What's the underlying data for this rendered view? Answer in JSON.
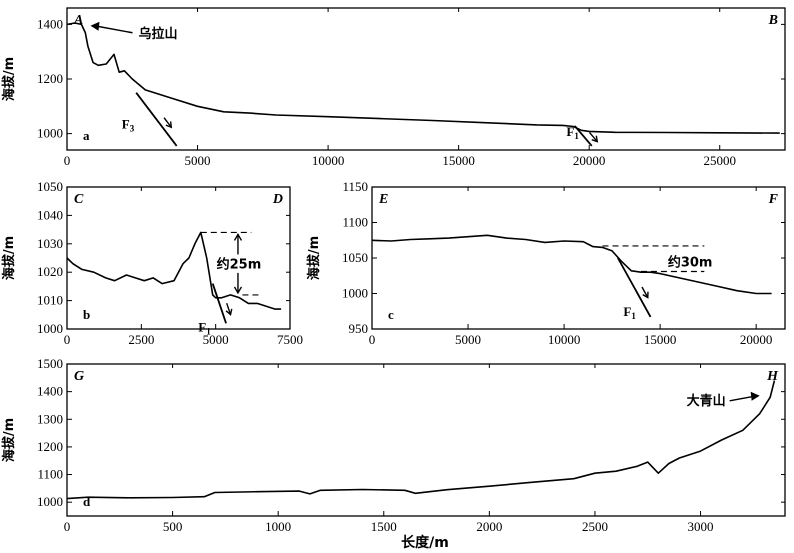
{
  "figure": {
    "xlabel": "长度/m"
  },
  "chart_data": [
    {
      "id": "a",
      "type": "line",
      "panel_label": "a",
      "corner_left": "A",
      "corner_right": "B",
      "ylabel": "海拔/m",
      "xlim": [
        0,
        27500
      ],
      "ylim": [
        940,
        1460
      ],
      "xticks": [
        0,
        5000,
        10000,
        15000,
        20000,
        25000
      ],
      "yticks": [
        1000,
        1200,
        1400
      ],
      "series": [
        {
          "x": [
            0,
            300,
            550,
            700,
            800,
            1000,
            1200,
            1500,
            1800,
            2000,
            2200,
            2500,
            3000,
            4000,
            5000,
            6000,
            7000,
            8000,
            10000,
            12000,
            14000,
            16000,
            18000,
            19000,
            19400,
            19700,
            20000,
            21000,
            23000,
            25000,
            27300
          ],
          "y": [
            1400,
            1405,
            1400,
            1370,
            1320,
            1260,
            1250,
            1255,
            1290,
            1225,
            1230,
            1200,
            1160,
            1130,
            1100,
            1080,
            1075,
            1068,
            1062,
            1055,
            1048,
            1040,
            1032,
            1030,
            1026,
            1012,
            1008,
            1005,
            1004,
            1003,
            1002
          ]
        }
      ],
      "annotations": [
        {
          "text": "乌拉山",
          "x": 500,
          "y": 1395
        }
      ],
      "faults": [
        {
          "label": "F",
          "sub": "3",
          "x1": 2650,
          "y1": 1150,
          "x2": 4200,
          "y2": 955
        },
        {
          "label": "F",
          "sub": "1",
          "x1": 19450,
          "y1": 1028,
          "x2": 20100,
          "y2": 955
        }
      ]
    },
    {
      "id": "b",
      "type": "line",
      "panel_label": "b",
      "corner_left": "C",
      "corner_right": "D",
      "ylabel": "海拔/m",
      "xlim": [
        0,
        7500
      ],
      "ylim": [
        1000,
        1050
      ],
      "xticks": [
        0,
        2500,
        5000,
        7500
      ],
      "yticks": [
        1000,
        1010,
        1020,
        1030,
        1040,
        1050
      ],
      "series": [
        {
          "x": [
            0,
            200,
            500,
            900,
            1300,
            1600,
            2000,
            2300,
            2600,
            2900,
            3200,
            3600,
            3900,
            4100,
            4300,
            4500,
            4700,
            4900,
            5000,
            5200,
            5500,
            5800,
            6100,
            6400,
            6700,
            7000,
            7200
          ],
          "y": [
            1025,
            1023,
            1021,
            1020,
            1018,
            1017,
            1019,
            1018,
            1017,
            1018,
            1016,
            1017,
            1023,
            1025,
            1030,
            1034,
            1025,
            1012,
            1011,
            1011,
            1012,
            1011,
            1009,
            1009,
            1008,
            1007,
            1007
          ]
        }
      ],
      "annotations": [
        {
          "text": "约25m"
        }
      ],
      "offset_ref": {
        "x_start": 4500,
        "x_end": 6200,
        "y_top": 1034,
        "y_bottom": 1012
      },
      "faults": [
        {
          "label": "F",
          "sub": "1",
          "x1": 4900,
          "y1": 1016,
          "x2": 5350,
          "y2": 1002
        }
      ]
    },
    {
      "id": "c",
      "type": "line",
      "panel_label": "c",
      "corner_left": "E",
      "corner_right": "F",
      "ylabel": "海拔/m",
      "xlim": [
        0,
        21500
      ],
      "ylim": [
        950,
        1150
      ],
      "xticks": [
        0,
        5000,
        10000,
        15000,
        20000
      ],
      "yticks": [
        950,
        1000,
        1050,
        1100,
        1150
      ],
      "series": [
        {
          "x": [
            0,
            1000,
            2000,
            3000,
            4000,
            5000,
            6000,
            6500,
            7000,
            8000,
            9000,
            10000,
            11000,
            11500,
            12000,
            12500,
            13000,
            13500,
            14000,
            14500,
            15000,
            16000,
            17000,
            18000,
            19000,
            20000,
            20800
          ],
          "y": [
            1075,
            1074,
            1076,
            1077,
            1078,
            1080,
            1082,
            1080,
            1078,
            1076,
            1072,
            1074,
            1073,
            1066,
            1065,
            1060,
            1045,
            1032,
            1030,
            1030,
            1028,
            1022,
            1016,
            1010,
            1004,
            1000,
            1000
          ]
        }
      ],
      "annotations": [
        {
          "text": "约30m"
        }
      ],
      "offset_ref": {
        "x_start": 12000,
        "x_end": 17300,
        "y_top": 1067,
        "y_bottom": 1031
      },
      "faults": [
        {
          "label": "F",
          "sub": "1",
          "x1": 12800,
          "y1": 1050,
          "x2": 14500,
          "y2": 967
        }
      ]
    },
    {
      "id": "d",
      "type": "line",
      "panel_label": "d",
      "corner_left": "G",
      "corner_right": "H",
      "ylabel": "海拔/m",
      "xlim": [
        0,
        3400
      ],
      "ylim": [
        950,
        1500
      ],
      "xticks": [
        0,
        500,
        1000,
        1500,
        2000,
        2500,
        3000
      ],
      "yticks": [
        1000,
        1100,
        1200,
        1300,
        1400,
        1500
      ],
      "series": [
        {
          "x": [
            0,
            100,
            300,
            500,
            650,
            700,
            900,
            1100,
            1150,
            1200,
            1400,
            1600,
            1650,
            1800,
            2000,
            2200,
            2400,
            2500,
            2600,
            2700,
            2750,
            2800,
            2850,
            2900,
            3000,
            3100,
            3200,
            3280,
            3330,
            3350
          ],
          "y": [
            1013,
            1018,
            1016,
            1017,
            1020,
            1035,
            1038,
            1040,
            1030,
            1043,
            1046,
            1043,
            1032,
            1045,
            1058,
            1072,
            1085,
            1105,
            1112,
            1130,
            1145,
            1105,
            1140,
            1160,
            1185,
            1225,
            1260,
            1320,
            1380,
            1440
          ]
        }
      ],
      "annotations": [
        {
          "text": "大青山",
          "x": 3320,
          "y": 1395
        }
      ],
      "faults": []
    }
  ]
}
